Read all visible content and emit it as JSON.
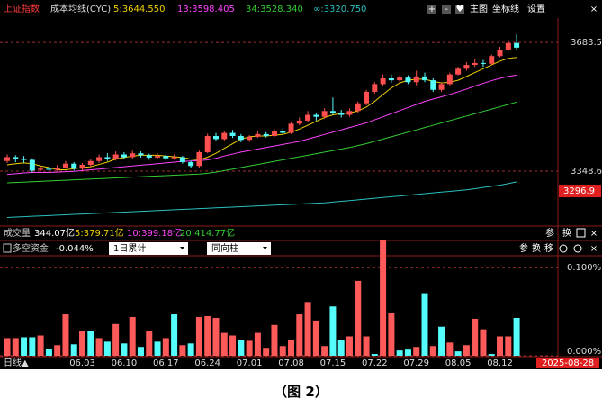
{
  "chart_data": [
    {
      "type": "candlestick",
      "title": "上证指数",
      "subtitle": "成本均线(CYC)",
      "categories": [
        null,
        null,
        null,
        null,
        null,
        null,
        null,
        null,
        null,
        "06.03",
        null,
        null,
        null,
        null,
        "06.10",
        null,
        null,
        null,
        null,
        "06.17",
        null,
        null,
        null,
        null,
        "06.24",
        null,
        null,
        null,
        null,
        "07.01",
        null,
        null,
        null,
        null,
        "07.08",
        null,
        null,
        null,
        null,
        "07.15",
        null,
        null,
        null,
        null,
        "07.22",
        null,
        null,
        null,
        null,
        "07.29",
        null,
        null,
        null,
        null,
        "08.05",
        null,
        null,
        null,
        null,
        "08.12",
        null,
        null
      ],
      "open": [
        3375,
        3385,
        3380,
        3378,
        3352,
        3355,
        3352,
        3358,
        3368,
        3355,
        3365,
        3375,
        3385,
        3380,
        3392,
        3385,
        3395,
        3390,
        3384,
        3388,
        3382,
        3385,
        3372,
        3362,
        3398,
        3440,
        3432,
        3448,
        3440,
        3430,
        3438,
        3445,
        3440,
        3452,
        3448,
        3472,
        3480,
        3495,
        3490,
        3505,
        3500,
        3495,
        3505,
        3525,
        3555,
        3575,
        3590,
        3585,
        3592,
        3580,
        3595,
        3585,
        3560,
        3575,
        3600,
        3615,
        3625,
        3630,
        3628,
        3648,
        3665,
        3682
      ],
      "high": [
        3392,
        3390,
        3388,
        3382,
        3362,
        3360,
        3365,
        3375,
        3372,
        3370,
        3380,
        3392,
        3395,
        3400,
        3398,
        3402,
        3400,
        3394,
        3395,
        3392,
        3392,
        3388,
        3376,
        3402,
        3446,
        3448,
        3452,
        3456,
        3445,
        3442,
        3452,
        3450,
        3458,
        3460,
        3476,
        3488,
        3505,
        3500,
        3512,
        3540,
        3508,
        3512,
        3530,
        3560,
        3580,
        3600,
        3600,
        3598,
        3598,
        3610,
        3605,
        3590,
        3580,
        3605,
        3620,
        3632,
        3640,
        3638,
        3652,
        3672,
        3690,
        3705
      ],
      "low": [
        3370,
        3372,
        3370,
        3345,
        3348,
        3345,
        3348,
        3355,
        3350,
        3350,
        3360,
        3370,
        3375,
        3376,
        3380,
        3380,
        3384,
        3378,
        3380,
        3375,
        3378,
        3368,
        3356,
        3358,
        3395,
        3428,
        3428,
        3435,
        3424,
        3425,
        3435,
        3436,
        3437,
        3444,
        3445,
        3468,
        3476,
        3480,
        3485,
        3495,
        3488,
        3490,
        3500,
        3520,
        3550,
        3570,
        3578,
        3580,
        3575,
        3572,
        3580,
        3555,
        3555,
        3572,
        3598,
        3610,
        3620,
        3620,
        3625,
        3645,
        3660,
        3665
      ],
      "close": [
        3385,
        3380,
        3378,
        3350,
        3355,
        3352,
        3358,
        3368,
        3355,
        3365,
        3375,
        3385,
        3380,
        3392,
        3385,
        3395,
        3390,
        3384,
        3388,
        3382,
        3385,
        3372,
        3362,
        3398,
        3440,
        3432,
        3448,
        3440,
        3430,
        3438,
        3445,
        3440,
        3452,
        3448,
        3472,
        3480,
        3495,
        3490,
        3505,
        3500,
        3495,
        3505,
        3525,
        3555,
        3575,
        3590,
        3585,
        3592,
        3580,
        3595,
        3585,
        3560,
        3575,
        3600,
        3615,
        3625,
        3630,
        3628,
        3648,
        3665,
        3682,
        3670
      ],
      "up_color": "#ff4f4f",
      "down_color": "#54fcfc",
      "series": [
        {
          "name": "5:3644.550",
          "color": "#f0d000",
          "values": [
            3365,
            3368,
            3370,
            3368,
            3362,
            3358,
            3352,
            3352,
            3355,
            3358,
            3360,
            3366,
            3372,
            3380,
            3384,
            3388,
            3390,
            3390,
            3390,
            3388,
            3386,
            3384,
            3380,
            3378,
            3385,
            3395,
            3408,
            3420,
            3432,
            3438,
            3440,
            3440,
            3442,
            3444,
            3450,
            3458,
            3468,
            3478,
            3488,
            3495,
            3498,
            3500,
            3505,
            3515,
            3530,
            3548,
            3565,
            3578,
            3585,
            3588,
            3588,
            3582,
            3578,
            3580,
            3585,
            3595,
            3605,
            3615,
            3625,
            3635,
            3642,
            3644.55
          ]
        },
        {
          "name": "13:3598.405",
          "color": "#ff44ff",
          "values": [
            3340,
            3342,
            3344,
            3345,
            3345,
            3345,
            3346,
            3347,
            3348,
            3350,
            3352,
            3354,
            3356,
            3358,
            3360,
            3362,
            3364,
            3366,
            3368,
            3370,
            3372,
            3374,
            3375,
            3376,
            3378,
            3382,
            3388,
            3393,
            3398,
            3402,
            3406,
            3410,
            3414,
            3418,
            3422,
            3426,
            3432,
            3438,
            3444,
            3450,
            3456,
            3462,
            3468,
            3474,
            3482,
            3490,
            3498,
            3506,
            3514,
            3522,
            3530,
            3536,
            3542,
            3548,
            3555,
            3562,
            3570,
            3577,
            3584,
            3590,
            3595,
            3598.405
          ]
        },
        {
          "name": "34:3528.340",
          "color": "#33cc33",
          "values": [
            3318,
            3319,
            3320,
            3321,
            3322,
            3323,
            3324,
            3325,
            3326,
            3327,
            3328,
            3329,
            3330,
            3331,
            3332,
            3333,
            3334,
            3335,
            3336,
            3337,
            3338,
            3339,
            3340,
            3341,
            3343,
            3346,
            3350,
            3354,
            3358,
            3362,
            3366,
            3370,
            3374,
            3378,
            3382,
            3386,
            3390,
            3394,
            3398,
            3402,
            3406,
            3410,
            3415,
            3420,
            3426,
            3432,
            3438,
            3444,
            3450,
            3456,
            3462,
            3468,
            3474,
            3480,
            3486,
            3492,
            3498,
            3504,
            3510,
            3516,
            3522,
            3528.34
          ]
        },
        {
          "name": "∞:3320.750",
          "color": "#2bbfbf",
          "values": [
            3228,
            3229,
            3230,
            3231,
            3232,
            3233,
            3234,
            3235,
            3236,
            3237,
            3238,
            3239,
            3240,
            3241,
            3242,
            3243,
            3244,
            3245,
            3246,
            3247,
            3248,
            3249,
            3250,
            3251,
            3252,
            3253,
            3254,
            3255,
            3256,
            3257,
            3258,
            3259,
            3260,
            3261,
            3262,
            3263,
            3264,
            3265,
            3266,
            3268,
            3270,
            3272,
            3274,
            3276,
            3278,
            3280,
            3282,
            3284,
            3286,
            3288,
            3290,
            3292,
            3294,
            3296,
            3298,
            3300,
            3303,
            3306,
            3309,
            3312,
            3316,
            3320.75
          ]
        }
      ],
      "ylim": [
        3208,
        3747
      ],
      "yticks": [
        3683.5,
        3348.6
      ],
      "ymarker": 3296.9,
      "x_marker": "2025-08-28"
    },
    {
      "type": "bar",
      "title": "多空资金",
      "subtitle": "-0.044%",
      "values": [
        0.02,
        0.02,
        0.021,
        0.021,
        0.023,
        0.008,
        0.012,
        0.047,
        0.013,
        0.028,
        0.028,
        0.02,
        0.016,
        0.036,
        0.014,
        0.044,
        0.01,
        0.028,
        0.016,
        0.02,
        0.047,
        0.012,
        0.014,
        0.044,
        0.045,
        0.043,
        0.026,
        0.023,
        0.018,
        0.017,
        0.026,
        0.009,
        0.035,
        0.011,
        0.018,
        0.047,
        0.061,
        0.04,
        0.011,
        0.056,
        0.018,
        0.022,
        0.085,
        0.022,
        0.002,
        0.131,
        0.049,
        0.006,
        0.007,
        0.01,
        0.071,
        0.011,
        0.033,
        0.015,
        0.005,
        0.012,
        0.042,
        0.03,
        0.002,
        0.022,
        0.022,
        0.043
      ],
      "colors": [
        "#ff5a5a",
        "#ff5a5a",
        "#54fcfc",
        "#54fcfc",
        "#ff5a5a",
        "#54fcfc",
        "#ff5a5a",
        "#ff5a5a",
        "#54fcfc",
        "#ff5a5a",
        "#54fcfc",
        "#ff5a5a",
        "#54fcfc",
        "#ff5a5a",
        "#54fcfc",
        "#ff5a5a",
        "#54fcfc",
        "#ff5a5a",
        "#54fcfc",
        "#ff5a5a",
        "#54fcfc",
        "#ff5a5a",
        "#54fcfc",
        "#ff5a5a",
        "#ff5a5a",
        "#ff5a5a",
        "#ff5a5a",
        "#ff5a5a",
        "#54fcfc",
        "#ff5a5a",
        "#ff5a5a",
        "#ff5a5a",
        "#ff5a5a",
        "#ff5a5a",
        "#ff5a5a",
        "#ff5a5a",
        "#ff5a5a",
        "#ff5a5a",
        "#ff5a5a",
        "#54fcfc",
        "#54fcfc",
        "#ff5a5a",
        "#ff5a5a",
        "#ff5a5a",
        "#54fcfc",
        "#ff5a5a",
        "#ff5a5a",
        "#54fcfc",
        "#54fcfc",
        "#ff5a5a",
        "#54fcfc",
        "#ff5a5a",
        "#54fcfc",
        "#ff5a5a",
        "#54fcfc",
        "#ff5a5a",
        "#ff5a5a",
        "#ff5a5a",
        "#54fcfc",
        "#ff5a5a",
        "#ff5a5a",
        "#54fcfc"
      ],
      "ylim": [
        0,
        0.135
      ],
      "yticks": [
        {
          "value": 0.1,
          "label": "0.100%"
        },
        {
          "value": 0,
          "label": "0.000%"
        }
      ]
    }
  ],
  "toolbar": {
    "icons": [
      "+",
      "-",
      "♥"
    ],
    "buttons": [
      "主图",
      "坐标线",
      "设置"
    ],
    "close": "×"
  },
  "volume": [
    "成交量",
    "344.07亿",
    "5:379.71亿",
    "10:399.18亿",
    "20:414.77亿"
  ],
  "volume_tools": [
    "参",
    "换"
  ],
  "fund_tools": [
    "参",
    "换",
    "移"
  ],
  "controls": [
    "1日累计",
    "同向柱"
  ],
  "period": "日线▲",
  "caption": "（图 2）"
}
